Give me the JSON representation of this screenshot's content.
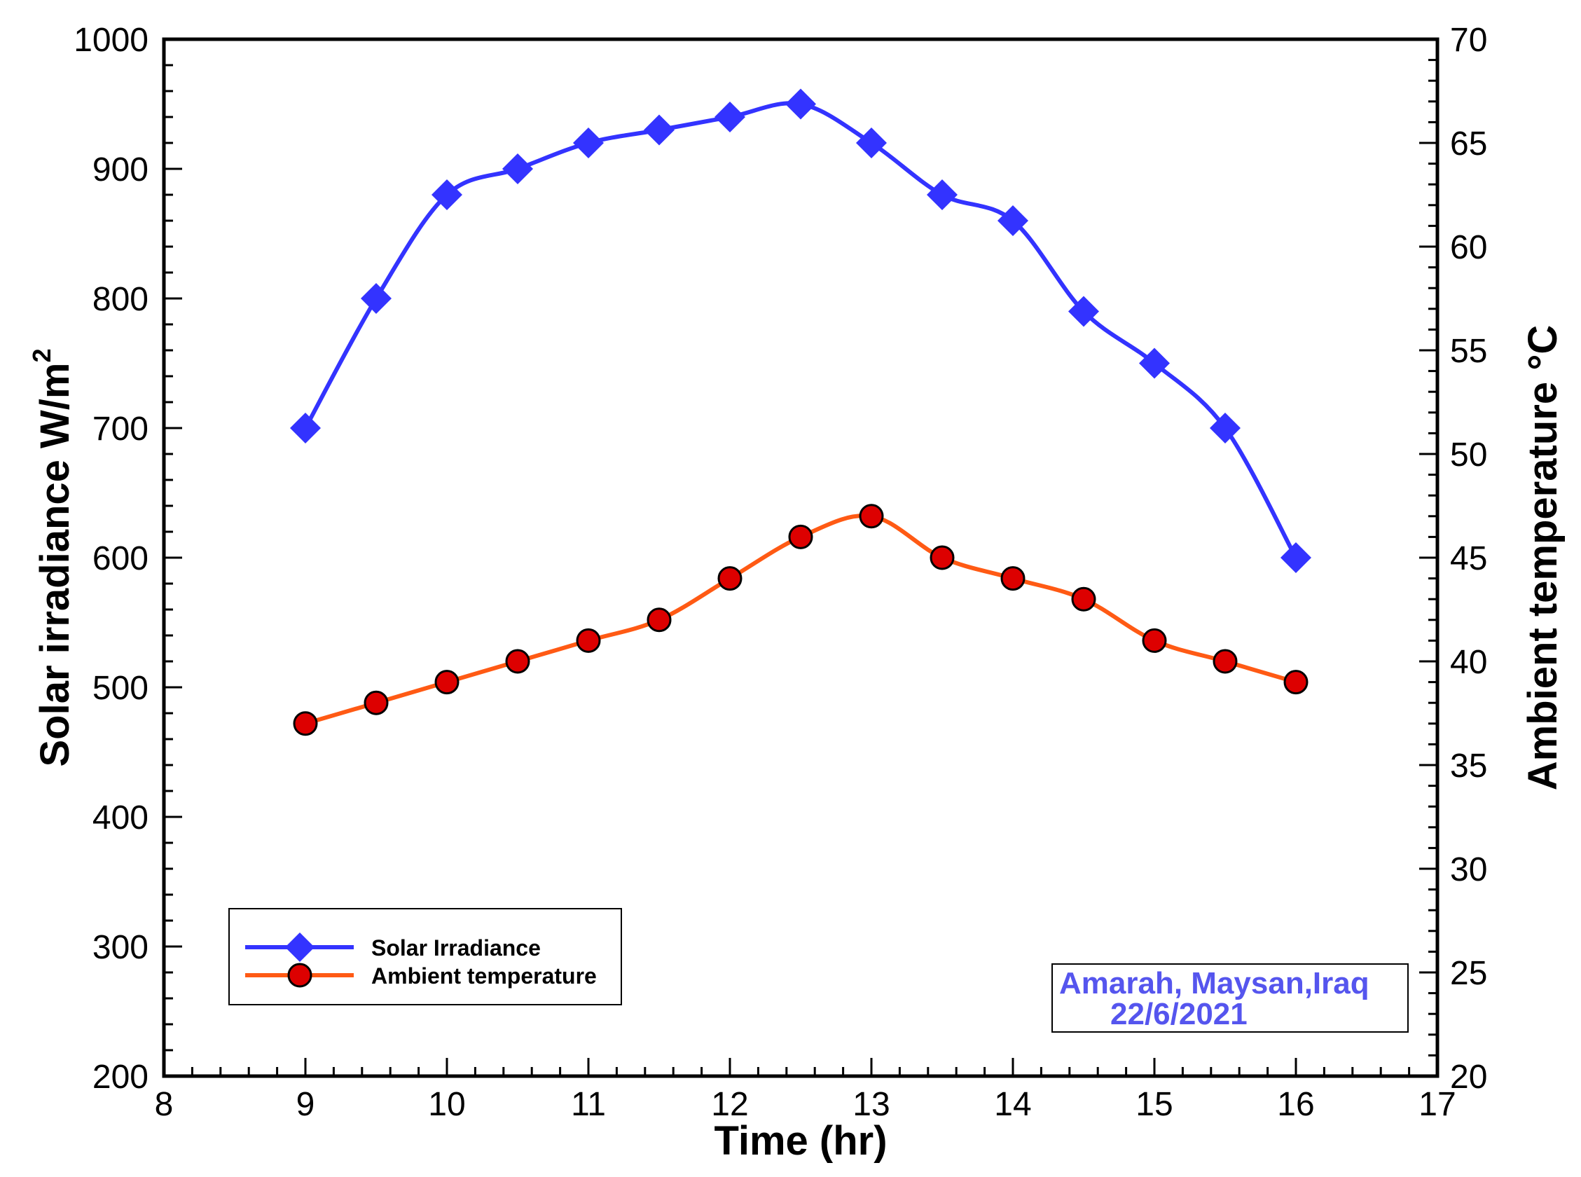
{
  "chart_data": {
    "type": "line",
    "title": "",
    "xlabel": "Time (hr)",
    "ylabel": "Solar irradiance W/m",
    "ylabel_superscript": "2",
    "y2label": "Ambient temperature °C",
    "xlim": [
      8,
      17
    ],
    "ylim": [
      200,
      1000
    ],
    "y2lim": [
      20,
      70
    ],
    "x_ticks": [
      "8",
      "9",
      "10",
      "11",
      "12",
      "13",
      "14",
      "15",
      "16",
      "17"
    ],
    "y_ticks": [
      "200",
      "300",
      "400",
      "500",
      "600",
      "700",
      "800",
      "900",
      "1000"
    ],
    "y2_ticks": [
      "20",
      "25",
      "30",
      "35",
      "40",
      "45",
      "50",
      "55",
      "60",
      "65",
      "70"
    ],
    "grid": false,
    "legend_position": "bottom-left",
    "x": [
      9,
      9.5,
      10,
      10.5,
      11,
      11.5,
      12,
      12.5,
      13,
      13.5,
      14,
      14.5,
      15,
      15.5,
      16
    ],
    "series": [
      {
        "name": "Solar Irradiance",
        "axis": "left",
        "marker": "diamond",
        "color": "#3333ff",
        "values": [
          700,
          800,
          880,
          900,
          920,
          930,
          940,
          950,
          920,
          880,
          860,
          790,
          750,
          700,
          600
        ]
      },
      {
        "name": "Ambient temperature",
        "axis": "right",
        "marker": "circle",
        "color": "#ff5a14",
        "marker_fill": "#dd0000",
        "values": [
          37,
          38,
          39,
          40,
          41,
          42,
          44,
          46,
          47,
          45,
          44,
          43,
          41,
          40,
          39
        ]
      }
    ],
    "annotation": {
      "line1": "Amarah, Maysan,Iraq",
      "line2": "22/6/2021",
      "color": "#5555ee"
    }
  }
}
